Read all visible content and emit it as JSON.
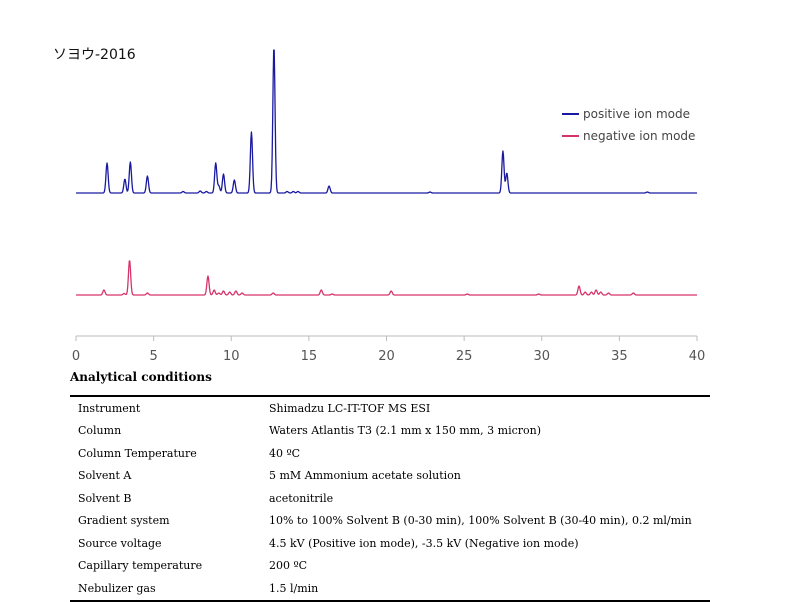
{
  "sample_title": "ソヨウ-2016",
  "legend": [
    {
      "label": "positive ion mode",
      "color": "#1a1aa0"
    },
    {
      "label": "negative ion mode",
      "color": "#d6336c"
    }
  ],
  "chart_data": {
    "type": "line",
    "title": "ソヨウ-2016",
    "xlabel": "",
    "ylabel": "",
    "xlim": [
      0,
      40
    ],
    "x_ticks": [
      "0",
      "5",
      "10",
      "15",
      "20",
      "25",
      "30",
      "35",
      "40"
    ],
    "grid": false,
    "legend_position": "top-right",
    "series": [
      {
        "name": "positive ion mode",
        "color": "#1a1aa0",
        "peaks": [
          {
            "x": 2.0,
            "y": 30
          },
          {
            "x": 3.15,
            "y": 14
          },
          {
            "x": 3.5,
            "y": 31
          },
          {
            "x": 4.6,
            "y": 17
          },
          {
            "x": 6.9,
            "y": 1.5
          },
          {
            "x": 8.0,
            "y": 2
          },
          {
            "x": 8.4,
            "y": 1.5
          },
          {
            "x": 9.0,
            "y": 30
          },
          {
            "x": 9.2,
            "y": 7
          },
          {
            "x": 9.5,
            "y": 19
          },
          {
            "x": 10.2,
            "y": 13
          },
          {
            "x": 11.3,
            "y": 61
          },
          {
            "x": 12.75,
            "y": 147
          },
          {
            "x": 13.6,
            "y": 1.5
          },
          {
            "x": 14.0,
            "y": 1.5
          },
          {
            "x": 14.3,
            "y": 1.5
          },
          {
            "x": 16.3,
            "y": 7
          },
          {
            "x": 22.8,
            "y": 1
          },
          {
            "x": 27.5,
            "y": 42
          },
          {
            "x": 27.75,
            "y": 20
          },
          {
            "x": 36.8,
            "y": 1
          }
        ]
      },
      {
        "name": "negative ion mode",
        "color": "#d6336c",
        "peaks": [
          {
            "x": 1.8,
            "y": 5
          },
          {
            "x": 3.1,
            "y": 1.5
          },
          {
            "x": 3.45,
            "y": 35
          },
          {
            "x": 4.6,
            "y": 2
          },
          {
            "x": 8.5,
            "y": 19
          },
          {
            "x": 8.9,
            "y": 5
          },
          {
            "x": 9.2,
            "y": 2
          },
          {
            "x": 9.5,
            "y": 4
          },
          {
            "x": 9.9,
            "y": 3
          },
          {
            "x": 10.3,
            "y": 4
          },
          {
            "x": 10.7,
            "y": 2
          },
          {
            "x": 12.7,
            "y": 2
          },
          {
            "x": 15.8,
            "y": 5
          },
          {
            "x": 16.5,
            "y": 1
          },
          {
            "x": 20.3,
            "y": 4
          },
          {
            "x": 25.2,
            "y": 1
          },
          {
            "x": 29.8,
            "y": 1
          },
          {
            "x": 32.4,
            "y": 9
          },
          {
            "x": 32.8,
            "y": 3
          },
          {
            "x": 33.2,
            "y": 3
          },
          {
            "x": 33.5,
            "y": 5
          },
          {
            "x": 33.8,
            "y": 3
          },
          {
            "x": 34.3,
            "y": 2
          },
          {
            "x": 35.9,
            "y": 2
          }
        ]
      }
    ]
  },
  "conditions": {
    "title": "Analytical conditions",
    "rows": [
      {
        "label": "Instrument",
        "value": "Shimadzu LC-IT-TOF MS ESI"
      },
      {
        "label": "Column",
        "value": "Waters Atlantis T3 (2.1 mm x 150 mm, 3 micron)"
      },
      {
        "label": "Column Temperature",
        "value": "40 ºC"
      },
      {
        "label": "Solvent A",
        "value": "5 mM Ammonium acetate solution"
      },
      {
        "label": "Solvent B",
        "value": "acetonitrile"
      },
      {
        "label": "Gradient system",
        "value": "10% to 100% Solvent B (0-30 min), 100% Solvent B (30-40 min), 0.2 ml/min"
      },
      {
        "label": "Source voltage",
        "value": "4.5 kV (Positive ion mode), -3.5 kV (Negative ion mode)"
      },
      {
        "label": "Capillary temperature",
        "value": "200 ºC"
      },
      {
        "label": "Nebulizer gas",
        "value": "1.5 l/min"
      }
    ]
  }
}
